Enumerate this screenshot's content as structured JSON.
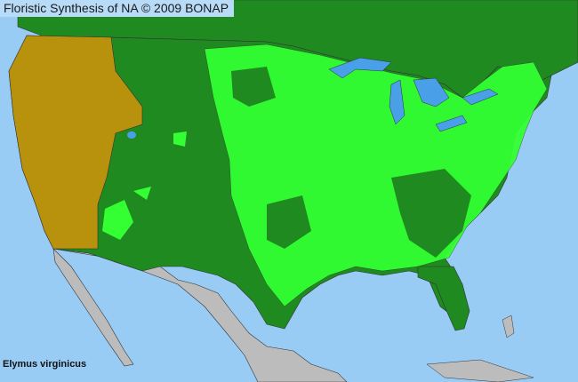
{
  "header": {
    "title": "Floristic Synthesis of NA © 2009 BONAP"
  },
  "species_label": "Elymus virginicus",
  "colors": {
    "ocean": "#99ccf5",
    "present_dark_green": "#1f8a1f",
    "present_bright_green": "#33ff33",
    "gold_region": "#b8920c",
    "outside_region_gray": "#bcbcbc",
    "lakes": "#4aa0e8",
    "borders": "#333333"
  }
}
